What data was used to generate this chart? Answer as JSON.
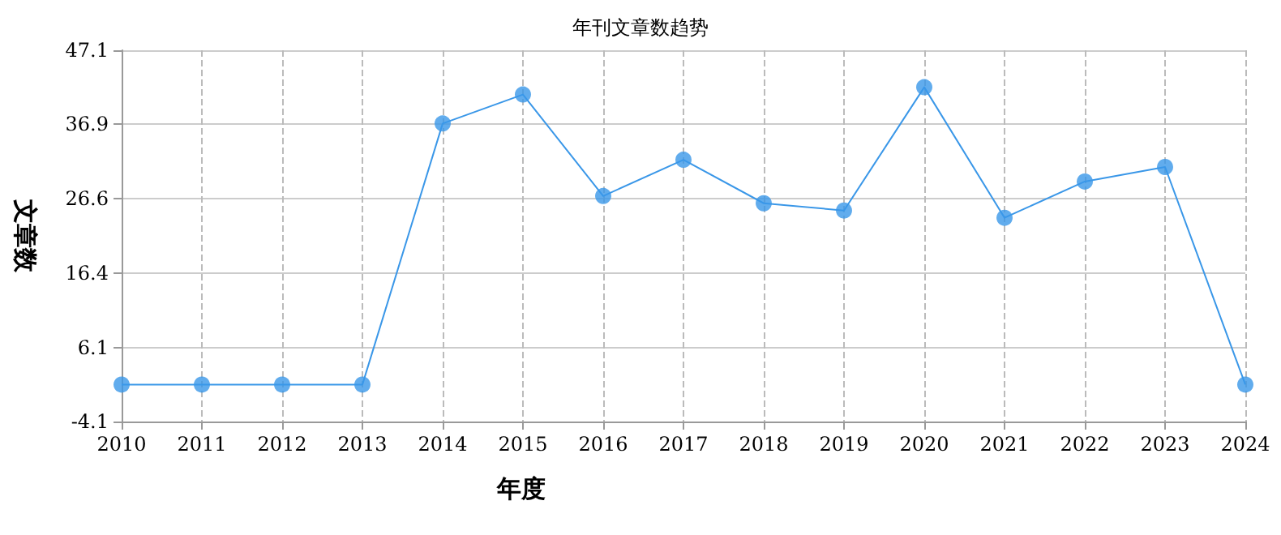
{
  "chart_data": {
    "type": "line",
    "title": "年刊文章数趋势",
    "xlabel": "年度",
    "ylabel": "文章数",
    "categories": [
      "2010",
      "2011",
      "2012",
      "2013",
      "2014",
      "2015",
      "2016",
      "2017",
      "2018",
      "2019",
      "2020",
      "2021",
      "2022",
      "2023",
      "2024"
    ],
    "series": [
      {
        "color": "#3a97e8",
        "values": [
          1,
          1,
          1,
          1,
          37,
          41,
          27,
          32,
          26,
          25,
          42,
          24,
          29,
          31,
          1
        ]
      }
    ],
    "ylim": [
      -4.1,
      47.1
    ],
    "yticks": [
      -4.1,
      6.1,
      16.4,
      26.6,
      36.9,
      47.1
    ],
    "grid": true,
    "marker": "circle",
    "line_style": "solid"
  }
}
